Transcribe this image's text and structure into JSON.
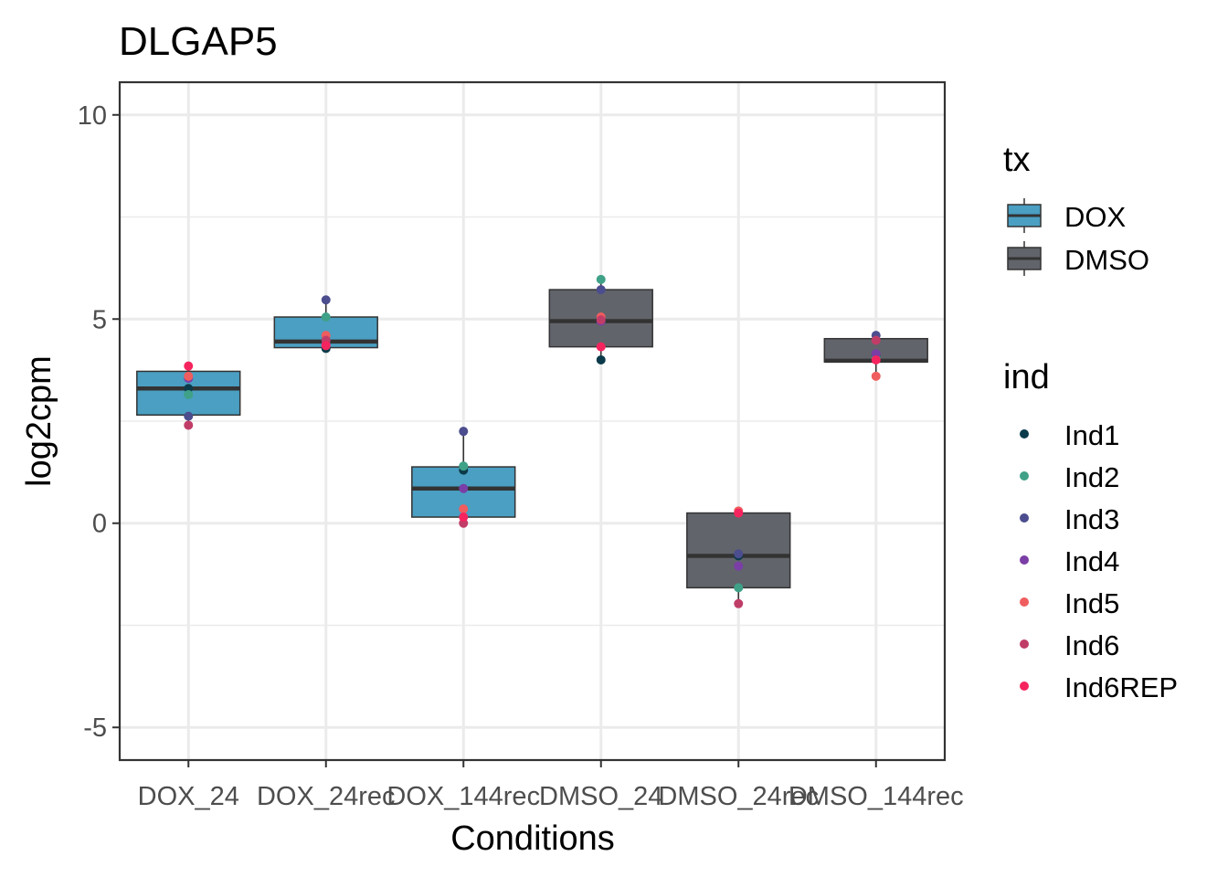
{
  "chart_data": {
    "type": "box",
    "title": "DLGAP5",
    "xlabel": "Conditions",
    "ylabel": "log2cpm",
    "ylim": [
      -5.8,
      10.8
    ],
    "yticks": [
      "-5",
      "0",
      "5",
      "10"
    ],
    "ytick_values": [
      -5,
      0,
      5,
      10
    ],
    "minor_y_values": [
      -2.5,
      2.5,
      7.5
    ],
    "categories": [
      "DOX_24",
      "DOX_24rec",
      "DOX_144rec",
      "DMSO_24",
      "DMSO_24rec",
      "DMSO_144rec"
    ],
    "boxes": [
      {
        "category": "DOX_24",
        "tx": "DOX",
        "q1": 2.65,
        "median": 3.3,
        "q3": 3.72,
        "whisker_low": 2.4,
        "whisker_high": 3.85
      },
      {
        "category": "DOX_24rec",
        "tx": "DOX",
        "q1": 4.3,
        "median": 4.45,
        "q3": 5.05,
        "whisker_low": 4.25,
        "whisker_high": 5.45
      },
      {
        "category": "DOX_144rec",
        "tx": "DOX",
        "q1": 0.15,
        "median": 0.85,
        "q3": 1.38,
        "whisker_low": 0.0,
        "whisker_high": 2.25
      },
      {
        "category": "DMSO_24",
        "tx": "DMSO",
        "q1": 4.32,
        "median": 4.95,
        "q3": 5.72,
        "whisker_low": 4.0,
        "whisker_high": 5.95
      },
      {
        "category": "DMSO_24rec",
        "tx": "DMSO",
        "q1": -1.58,
        "median": -0.8,
        "q3": 0.25,
        "whisker_low": -1.95,
        "whisker_high": 0.3
      },
      {
        "category": "DMSO_144rec",
        "tx": "DMSO",
        "q1": 3.95,
        "median": 3.98,
        "q3": 4.52,
        "whisker_low": 3.6,
        "whisker_high": 4.6
      }
    ],
    "points": [
      {
        "category": "DOX_24",
        "ind": "Ind1",
        "value": 3.3
      },
      {
        "category": "DOX_24",
        "ind": "Ind2",
        "value": 3.15
      },
      {
        "category": "DOX_24",
        "ind": "Ind3",
        "value": 2.62
      },
      {
        "category": "DOX_24",
        "ind": "Ind4",
        "value": 3.55
      },
      {
        "category": "DOX_24",
        "ind": "Ind5",
        "value": 3.6
      },
      {
        "category": "DOX_24",
        "ind": "Ind6",
        "value": 2.4
      },
      {
        "category": "DOX_24",
        "ind": "Ind6REP",
        "value": 3.85
      },
      {
        "category": "DOX_24rec",
        "ind": "Ind1",
        "value": 4.28
      },
      {
        "category": "DOX_24rec",
        "ind": "Ind2",
        "value": 5.05
      },
      {
        "category": "DOX_24rec",
        "ind": "Ind3",
        "value": 5.47
      },
      {
        "category": "DOX_24rec",
        "ind": "Ind4",
        "value": 4.38
      },
      {
        "category": "DOX_24rec",
        "ind": "Ind5",
        "value": 4.6
      },
      {
        "category": "DOX_24rec",
        "ind": "Ind6",
        "value": 4.48
      },
      {
        "category": "DOX_24rec",
        "ind": "Ind6REP",
        "value": 4.35
      },
      {
        "category": "DOX_144rec",
        "ind": "Ind1",
        "value": 1.3
      },
      {
        "category": "DOX_144rec",
        "ind": "Ind2",
        "value": 1.4
      },
      {
        "category": "DOX_144rec",
        "ind": "Ind3",
        "value": 2.25
      },
      {
        "category": "DOX_144rec",
        "ind": "Ind4",
        "value": 0.85
      },
      {
        "category": "DOX_144rec",
        "ind": "Ind5",
        "value": 0.35
      },
      {
        "category": "DOX_144rec",
        "ind": "Ind6",
        "value": 0.0
      },
      {
        "category": "DOX_144rec",
        "ind": "Ind6REP",
        "value": 0.15
      },
      {
        "category": "DMSO_24",
        "ind": "Ind1",
        "value": 4.0
      },
      {
        "category": "DMSO_24",
        "ind": "Ind2",
        "value": 5.97
      },
      {
        "category": "DMSO_24",
        "ind": "Ind3",
        "value": 5.72
      },
      {
        "category": "DMSO_24",
        "ind": "Ind4",
        "value": 4.95
      },
      {
        "category": "DMSO_24",
        "ind": "Ind5",
        "value": 5.05
      },
      {
        "category": "DMSO_24",
        "ind": "Ind6",
        "value": 4.98
      },
      {
        "category": "DMSO_24",
        "ind": "Ind6REP",
        "value": 4.32
      },
      {
        "category": "DMSO_24rec",
        "ind": "Ind1",
        "value": -0.8
      },
      {
        "category": "DMSO_24rec",
        "ind": "Ind2",
        "value": -1.58
      },
      {
        "category": "DMSO_24rec",
        "ind": "Ind3",
        "value": -0.75
      },
      {
        "category": "DMSO_24rec",
        "ind": "Ind4",
        "value": -1.05
      },
      {
        "category": "DMSO_24rec",
        "ind": "Ind5",
        "value": 0.3
      },
      {
        "category": "DMSO_24rec",
        "ind": "Ind6",
        "value": -1.97
      },
      {
        "category": "DMSO_24rec",
        "ind": "Ind6REP",
        "value": 0.25
      },
      {
        "category": "DMSO_144rec",
        "ind": "Ind1",
        "value": 4.1
      },
      {
        "category": "DMSO_144rec",
        "ind": "Ind2",
        "value": 4.05
      },
      {
        "category": "DMSO_144rec",
        "ind": "Ind3",
        "value": 4.6
      },
      {
        "category": "DMSO_144rec",
        "ind": "Ind4",
        "value": 4.15
      },
      {
        "category": "DMSO_144rec",
        "ind": "Ind5",
        "value": 3.6
      },
      {
        "category": "DMSO_144rec",
        "ind": "Ind6",
        "value": 4.48
      },
      {
        "category": "DMSO_144rec",
        "ind": "Ind6REP",
        "value": 4.0
      }
    ],
    "legend_tx": {
      "title": "tx",
      "entries": [
        {
          "label": "DOX",
          "color": "#4a9fc2"
        },
        {
          "label": "DMSO",
          "color": "#62646b"
        }
      ]
    },
    "legend_ind": {
      "title": "ind",
      "entries": [
        {
          "label": "Ind1",
          "color": "#0b3b4a"
        },
        {
          "label": "Ind2",
          "color": "#3fa187"
        },
        {
          "label": "Ind3",
          "color": "#4b4d8e"
        },
        {
          "label": "Ind4",
          "color": "#7a3ea6"
        },
        {
          "label": "Ind5",
          "color": "#f05d5e"
        },
        {
          "label": "Ind6",
          "color": "#c03d68"
        },
        {
          "label": "Ind6REP",
          "color": "#f5245e"
        }
      ]
    },
    "grid": true,
    "legend_position": "right"
  }
}
